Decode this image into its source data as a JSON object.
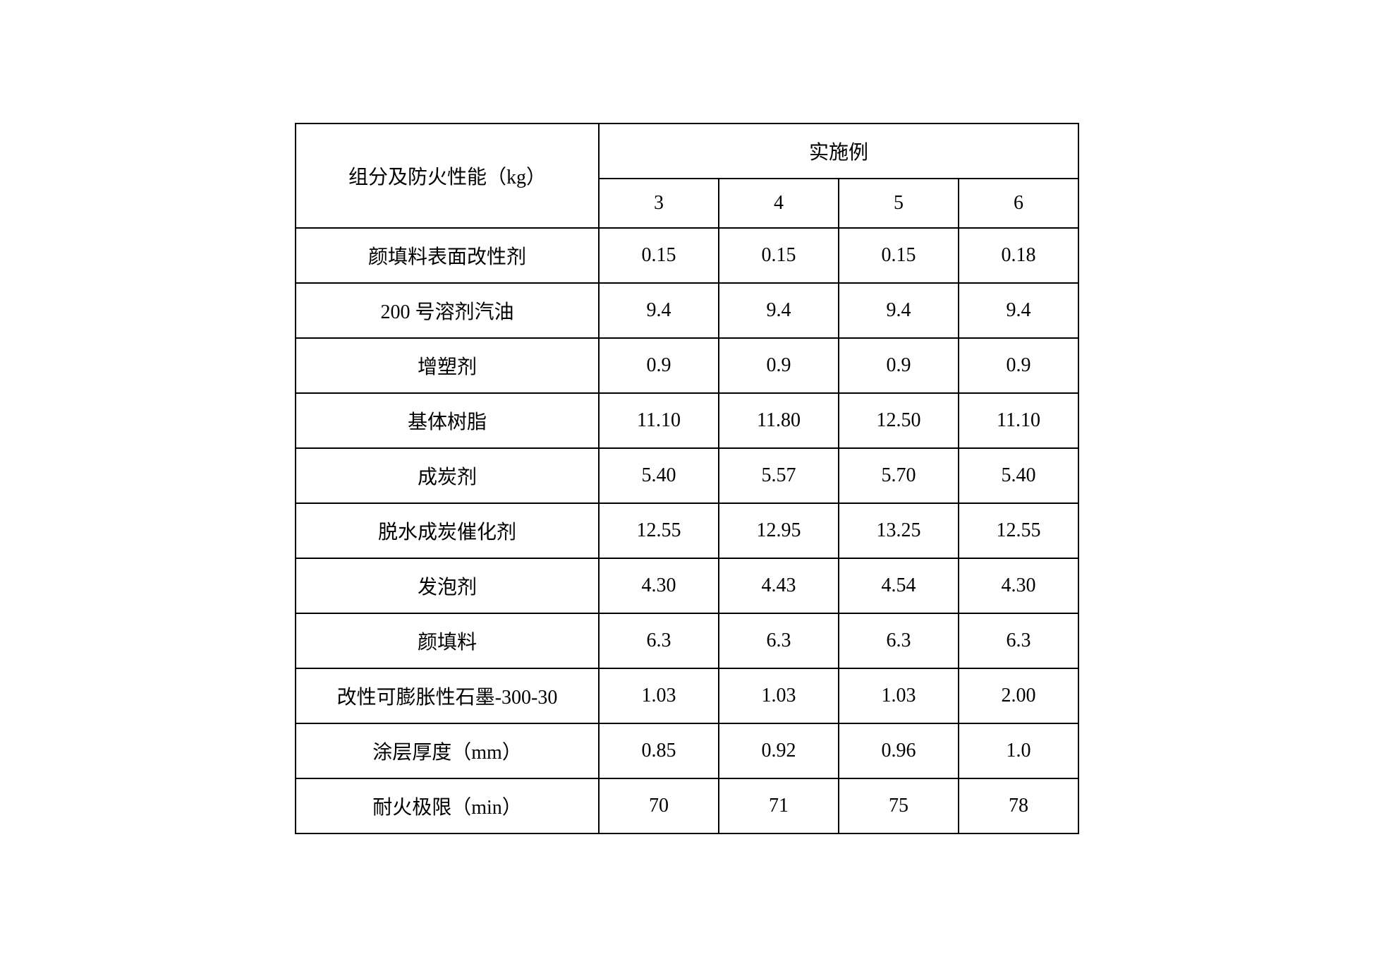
{
  "table": {
    "header": {
      "rowHeaderLabel": "组分及防火性能（kg）",
      "groupLabel": "实施例",
      "columns": [
        "3",
        "4",
        "5",
        "6"
      ]
    },
    "rows": [
      {
        "label": "颜填料表面改性剂",
        "values": [
          "0.15",
          "0.15",
          "0.15",
          "0.18"
        ]
      },
      {
        "label": "200 号溶剂汽油",
        "values": [
          "9.4",
          "9.4",
          "9.4",
          "9.4"
        ]
      },
      {
        "label": "增塑剂",
        "values": [
          "0.9",
          "0.9",
          "0.9",
          "0.9"
        ]
      },
      {
        "label": "基体树脂",
        "values": [
          "11.10",
          "11.80",
          "12.50",
          "11.10"
        ]
      },
      {
        "label": "成炭剂",
        "values": [
          "5.40",
          "5.57",
          "5.70",
          "5.40"
        ]
      },
      {
        "label": "脱水成炭催化剂",
        "values": [
          "12.55",
          "12.95",
          "13.25",
          "12.55"
        ]
      },
      {
        "label": "发泡剂",
        "values": [
          "4.30",
          "4.43",
          "4.54",
          "4.30"
        ]
      },
      {
        "label": "颜填料",
        "values": [
          "6.3",
          "6.3",
          "6.3",
          "6.3"
        ]
      },
      {
        "label": "改性可膨胀性石墨-300-30",
        "values": [
          "1.03",
          "1.03",
          "1.03",
          "2.00"
        ]
      },
      {
        "label": "涂层厚度（mm）",
        "values": [
          "0.85",
          "0.92",
          "0.96",
          "1.0"
        ]
      },
      {
        "label": "耐火极限（min）",
        "values": [
          "70",
          "71",
          "75",
          "78"
        ]
      }
    ],
    "styling": {
      "borderColor": "#000000",
      "borderWidth": 2,
      "backgroundColor": "#ffffff",
      "textColor": "#000000",
      "fontSize": 28,
      "fontFamily": "SimSun, Times New Roman, serif",
      "cellPaddingV": 18,
      "cellPaddingH": 24,
      "rowHeaderMinWidth": 430,
      "dataCellMinWidth": 170
    }
  }
}
